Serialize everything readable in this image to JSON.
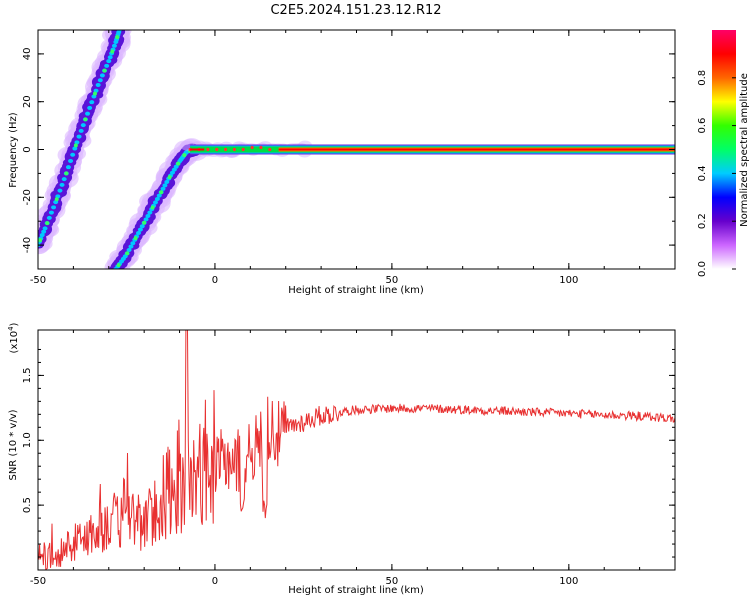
{
  "title": "C2E5.2024.151.23.12.R12",
  "chart_data": [
    {
      "type": "heatmap",
      "xlabel": "Height of straight line (km)",
      "ylabel": "Frequency (Hz)",
      "xlim": [
        -50,
        130
      ],
      "ylim": [
        -50,
        50
      ],
      "xticks": [
        -50,
        0,
        50,
        100
      ],
      "yticks": [
        -40,
        -20,
        0,
        20,
        40
      ],
      "colorbar": {
        "label": "Normalized spectral amplitude",
        "range": [
          0,
          1
        ],
        "ticks": [
          "0.0",
          "0.2",
          "0.4",
          "0.6",
          "0.8"
        ],
        "colors": [
          "#ffffff",
          "#cc66ff",
          "#6600cc",
          "#0000ff",
          "#00ccff",
          "#00ff66",
          "#33ff00",
          "#ffff00",
          "#ff6600",
          "#ff0000",
          "#ff0066"
        ]
      },
      "features": [
        {
          "name": "left diagonal streak",
          "x": [
            -50,
            -48,
            -45,
            -42,
            -39,
            -36,
            -33,
            -30,
            -28,
            -27
          ],
          "y": [
            -40,
            -33,
            -22,
            -10,
            3,
            15,
            27,
            37,
            45,
            50
          ]
        },
        {
          "name": "middle diagonal streak",
          "x": [
            -28,
            -25,
            -22,
            -19,
            -16,
            -13,
            -10,
            -8,
            -6
          ],
          "y": [
            -50,
            -44,
            -36,
            -28,
            -20,
            -12,
            -5,
            -1,
            0
          ]
        },
        {
          "name": "horizontal line",
          "x": [
            -7,
            130
          ],
          "y": [
            0,
            0
          ]
        }
      ],
      "grid": false
    },
    {
      "type": "line",
      "xlabel": "Height of straight line (km)",
      "ylabel": "SNR (10 * v/v)",
      "multiplier_label": "(x10",
      "multiplier_exp": "4",
      "multiplier_close": ")",
      "xlim": [
        -50,
        130
      ],
      "ylim": [
        0,
        1.85
      ],
      "xticks": [
        -50,
        0,
        50,
        100
      ],
      "yticks": [
        "0.5",
        "1.0",
        "1.5"
      ],
      "ytick_values": [
        0.5,
        1.0,
        1.5
      ],
      "color": "#e83030",
      "grid": false,
      "series": [
        {
          "x": [
            -50,
            -47,
            -44,
            -41,
            -38,
            -35,
            -32,
            -29,
            -26,
            -23,
            -20,
            -17,
            -14,
            -12,
            -10,
            -8,
            -6,
            -4,
            -2,
            0,
            2,
            4,
            6,
            8,
            10,
            12,
            14,
            16,
            18,
            20,
            25,
            30,
            35,
            40,
            50,
            60,
            70,
            80,
            90,
            100,
            110,
            120,
            130
          ],
          "y": [
            0.05,
            0.12,
            0.15,
            0.2,
            0.25,
            0.3,
            0.35,
            0.4,
            0.38,
            0.45,
            0.35,
            0.5,
            0.45,
            0.55,
            0.6,
            0.7,
            0.75,
            0.78,
            0.8,
            0.75,
            0.85,
            0.9,
            0.85,
            0.95,
            1.0,
            0.95,
            1.1,
            1.15,
            1.05,
            1.1,
            1.15,
            1.2,
            1.22,
            1.24,
            1.25,
            1.25,
            1.24,
            1.23,
            1.22,
            1.21,
            1.2,
            1.19,
            1.17
          ]
        }
      ],
      "annotations": {
        "spike_x": -8,
        "spike_y": 1.85
      }
    }
  ]
}
